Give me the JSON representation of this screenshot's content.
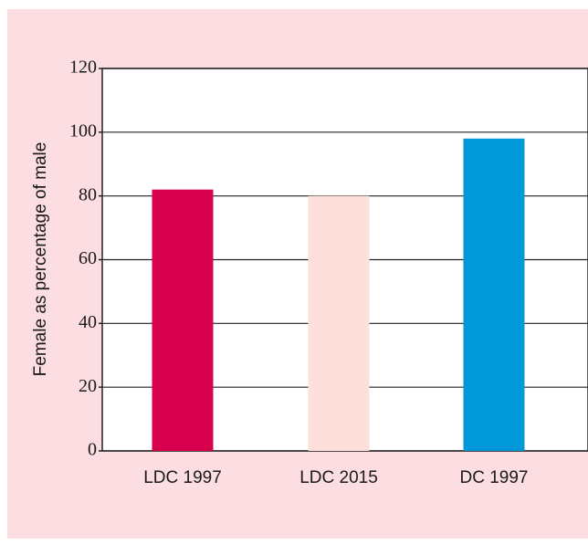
{
  "chart_data": {
    "type": "bar",
    "y_axis_label": "Female as percentage of male",
    "categories": [
      "LDC 1997",
      "LDC 2015",
      "DC 1997"
    ],
    "values": [
      82,
      80,
      98
    ],
    "colors": [
      "#d6004c",
      "#fde0dc",
      "#0098d8"
    ],
    "ylim": [
      0,
      120
    ],
    "yticks": [
      0,
      20,
      40,
      60,
      80,
      100,
      120
    ],
    "grid": true
  }
}
